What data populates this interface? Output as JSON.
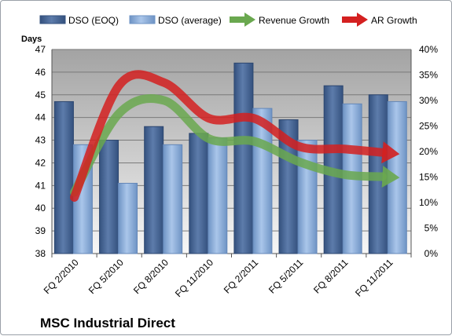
{
  "chart_data": {
    "type": "bar",
    "title": "MSC Industrial Direct",
    "ylabel_left": "Days",
    "ylim_left": [
      38,
      47
    ],
    "ylim_right": [
      0,
      0.4
    ],
    "left_ticks": [
      "38",
      "39",
      "40",
      "41",
      "42",
      "43",
      "44",
      "45",
      "46",
      "47"
    ],
    "right_ticks": [
      "0%",
      "5%",
      "10%",
      "15%",
      "20%",
      "25%",
      "30%",
      "35%",
      "40%"
    ],
    "categories": [
      "FQ 2/2010",
      "FQ 5/2010",
      "FQ 8/2010",
      "FQ 11/2010",
      "FQ 2/2011",
      "FQ 5/2011",
      "FQ 8/2011",
      "FQ 11/2011"
    ],
    "legend_position": "top",
    "grid": true,
    "bar_series": [
      {
        "name": "DSO (EOQ)",
        "values": [
          44.7,
          43.0,
          43.6,
          43.3,
          46.4,
          43.9,
          45.4,
          45.0
        ],
        "color": "#4f6fa0"
      },
      {
        "name": "DSO (average)",
        "values": [
          42.8,
          41.1,
          42.8,
          43.1,
          44.4,
          43.0,
          44.6,
          44.7
        ],
        "color": "#93b4e0"
      }
    ],
    "line_series": [
      {
        "name": "Revenue Growth",
        "values": [
          0.12,
          0.275,
          0.3,
          0.225,
          0.22,
          0.18,
          0.155,
          0.15
        ],
        "color": "#6aa84f"
      },
      {
        "name": "AR Growth",
        "values": [
          0.11,
          0.33,
          0.335,
          0.265,
          0.265,
          0.21,
          0.205,
          0.197
        ],
        "color": "#d42020"
      }
    ]
  }
}
